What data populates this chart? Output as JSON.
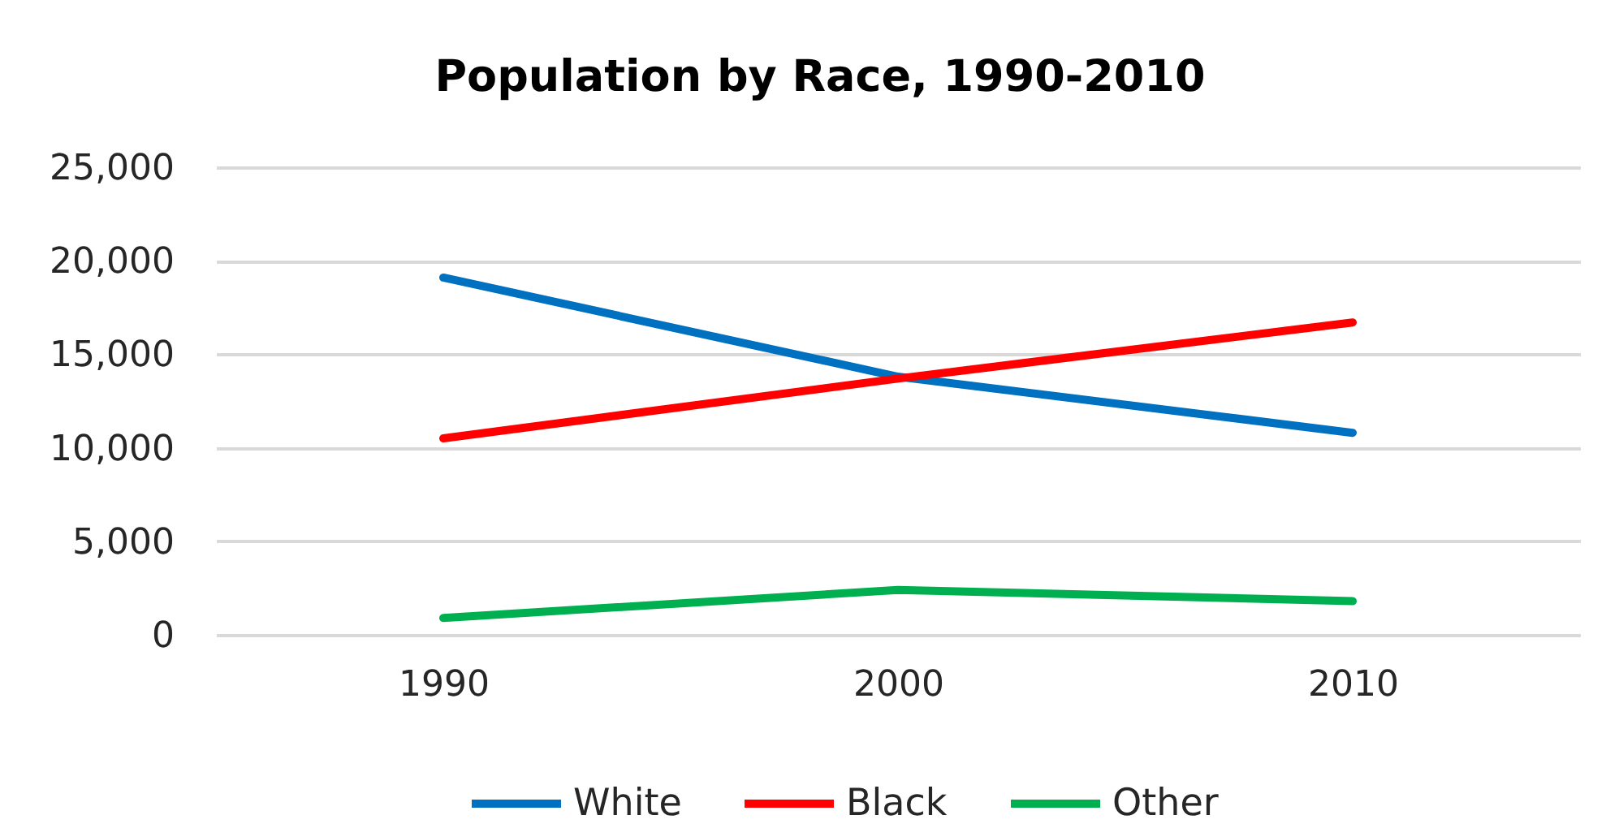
{
  "chart_data": {
    "type": "line",
    "title": "Population by Race, 1990-2010",
    "categories": [
      "1990",
      "2000",
      "2010"
    ],
    "series": [
      {
        "name": "White",
        "color": "#0070c0",
        "values": [
          19100,
          13800,
          10800
        ]
      },
      {
        "name": "Black",
        "color": "#ff0000",
        "values": [
          10500,
          13700,
          16700
        ]
      },
      {
        "name": "Other",
        "color": "#00b050",
        "values": [
          900,
          2400,
          1800
        ]
      }
    ],
    "ylim": [
      0,
      25000
    ],
    "yticks": [
      0,
      {
        "value": 5000,
        "label": "5,000"
      },
      {
        "value": 10000,
        "label": "10,000"
      },
      {
        "value": 15000,
        "label": "15,000"
      },
      {
        "value": 20000,
        "label": "20,000"
      },
      {
        "value": 25000,
        "label": "25,000"
      }
    ],
    "grid": "y",
    "legend": "bottom",
    "marker": "none",
    "line_style": "solid"
  }
}
